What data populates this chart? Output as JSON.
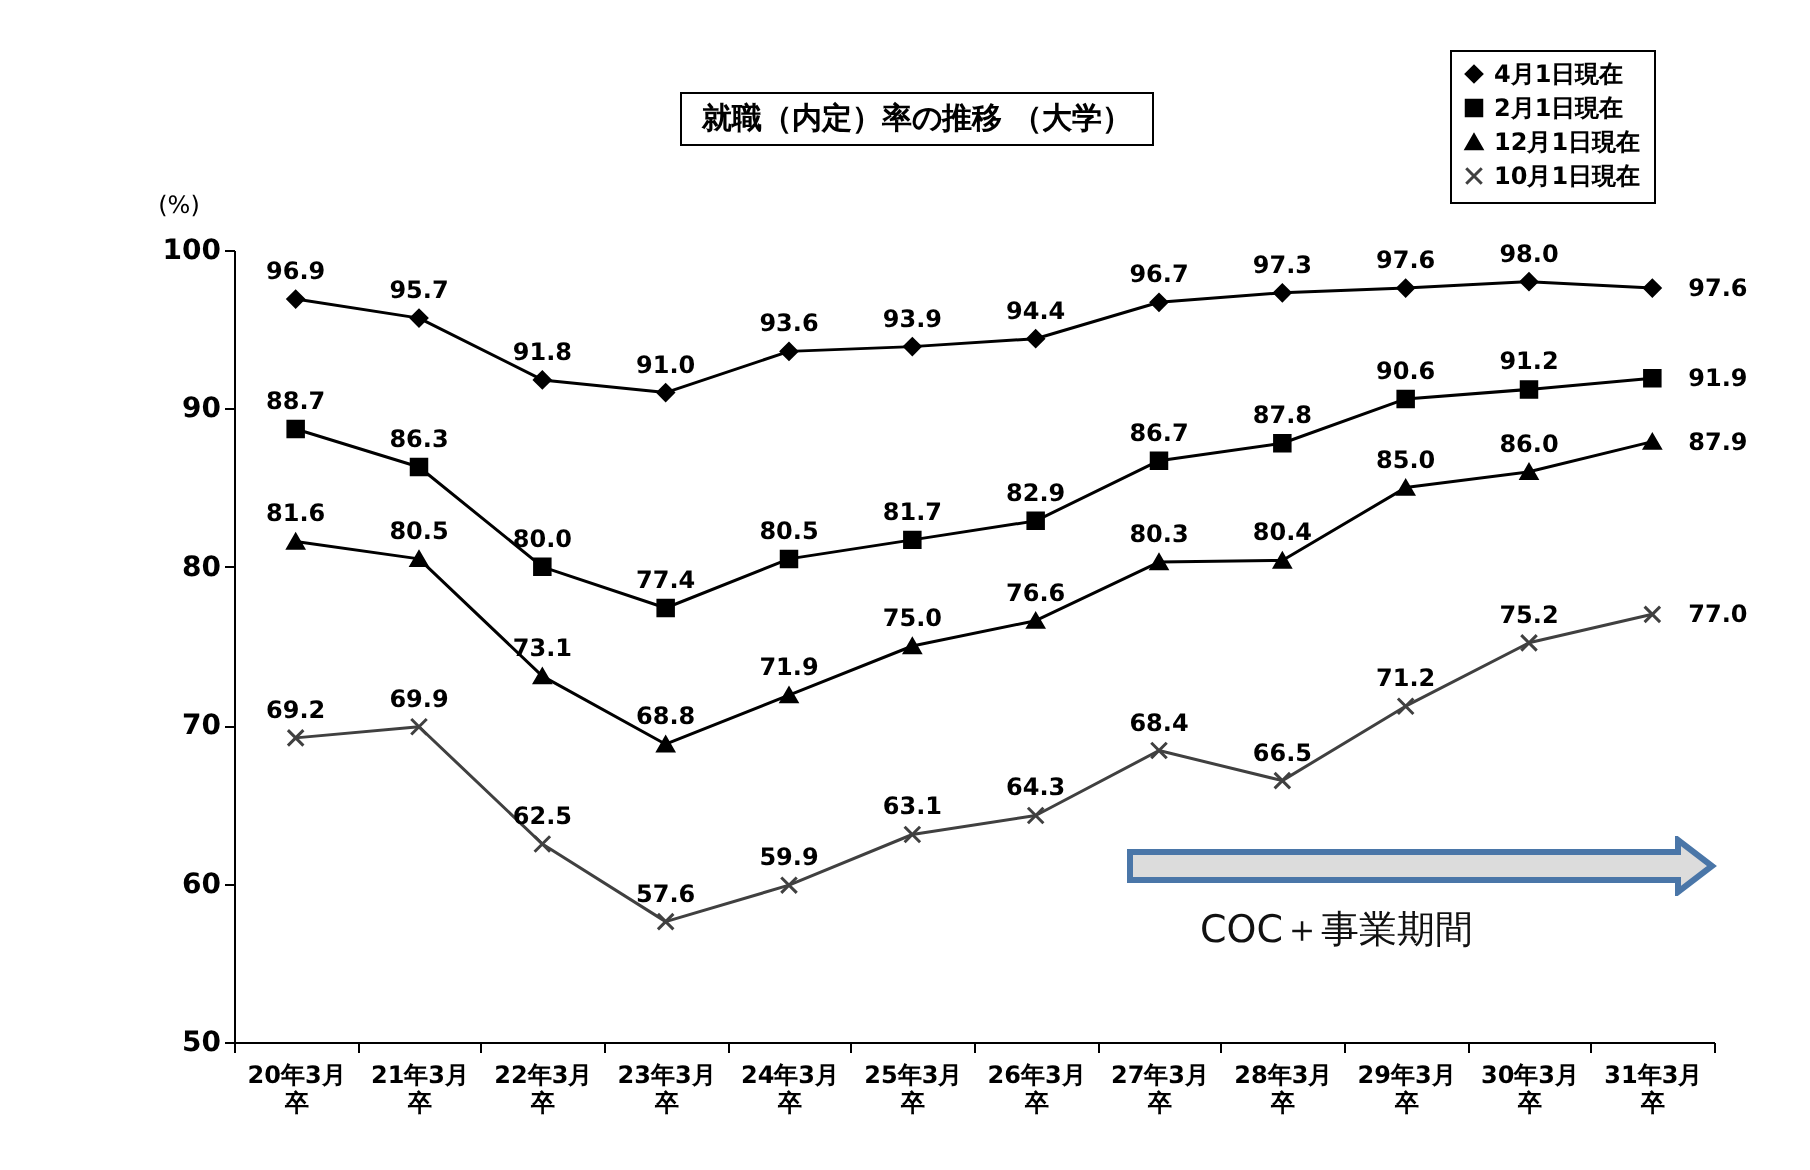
{
  "chart_data": {
    "type": "line",
    "title": "就職（内定）率の推移 （大学）",
    "ylabel": "(%)",
    "categories": [
      "20年3月卒",
      "21年3月卒",
      "22年3月卒",
      "23年3月卒",
      "24年3月卒",
      "25年3月卒",
      "26年3月卒",
      "27年3月卒",
      "28年3月卒",
      "29年3月卒",
      "30年3月卒",
      "31年3月卒"
    ],
    "series": [
      {
        "name": "4月1日現在",
        "color": "#000000",
        "marker": "diamond",
        "values": [
          96.9,
          95.7,
          91.8,
          91.0,
          93.6,
          93.9,
          94.4,
          96.7,
          97.3,
          97.6,
          98.0,
          97.6
        ],
        "value_labels": [
          "96.9",
          "95.7",
          "91.8",
          "91.0",
          "93.6",
          "93.9",
          "94.4",
          "96.7",
          "97.3",
          "97.6",
          "98.0",
          "97.6"
        ]
      },
      {
        "name": "2月1日現在",
        "color": "#000000",
        "marker": "square",
        "values": [
          88.7,
          86.3,
          80.0,
          77.4,
          80.5,
          81.7,
          82.9,
          86.7,
          87.8,
          90.6,
          91.2,
          91.9
        ],
        "value_labels": [
          "88.7",
          "86.3",
          "80.0",
          "77.4",
          "80.5",
          "81.7",
          "82.9",
          "86.7",
          "87.8",
          "90.6",
          "91.2",
          "91.9"
        ]
      },
      {
        "name": "12月1日現在",
        "color": "#000000",
        "marker": "triangle",
        "values": [
          81.6,
          80.5,
          73.1,
          68.8,
          71.9,
          75.0,
          76.6,
          80.3,
          80.4,
          85.0,
          86.0,
          87.9
        ],
        "value_labels": [
          "81.6",
          "80.5",
          "73.1",
          "68.8",
          "71.9",
          "75.0",
          "76.6",
          "80.3",
          "80.4",
          "85.0",
          "86.0",
          "87.9"
        ]
      },
      {
        "name": "10月1日現在",
        "color": "#404040",
        "marker": "cross",
        "values": [
          69.2,
          69.9,
          62.5,
          57.6,
          59.9,
          63.1,
          64.3,
          68.4,
          66.5,
          71.2,
          75.2,
          77.0
        ],
        "value_labels": [
          "69.2",
          "69.9",
          "62.5",
          "57.6",
          "59.9",
          "63.1",
          "64.3",
          "68.4",
          "66.5",
          "71.2",
          "75.2",
          "77.0"
        ]
      }
    ],
    "ylim": [
      50,
      100
    ],
    "yticks": [
      50,
      60,
      70,
      80,
      90,
      100
    ],
    "grid": false,
    "legend": "top right",
    "line_style": "solid",
    "annotations": [
      "COC＋事業期間"
    ]
  }
}
